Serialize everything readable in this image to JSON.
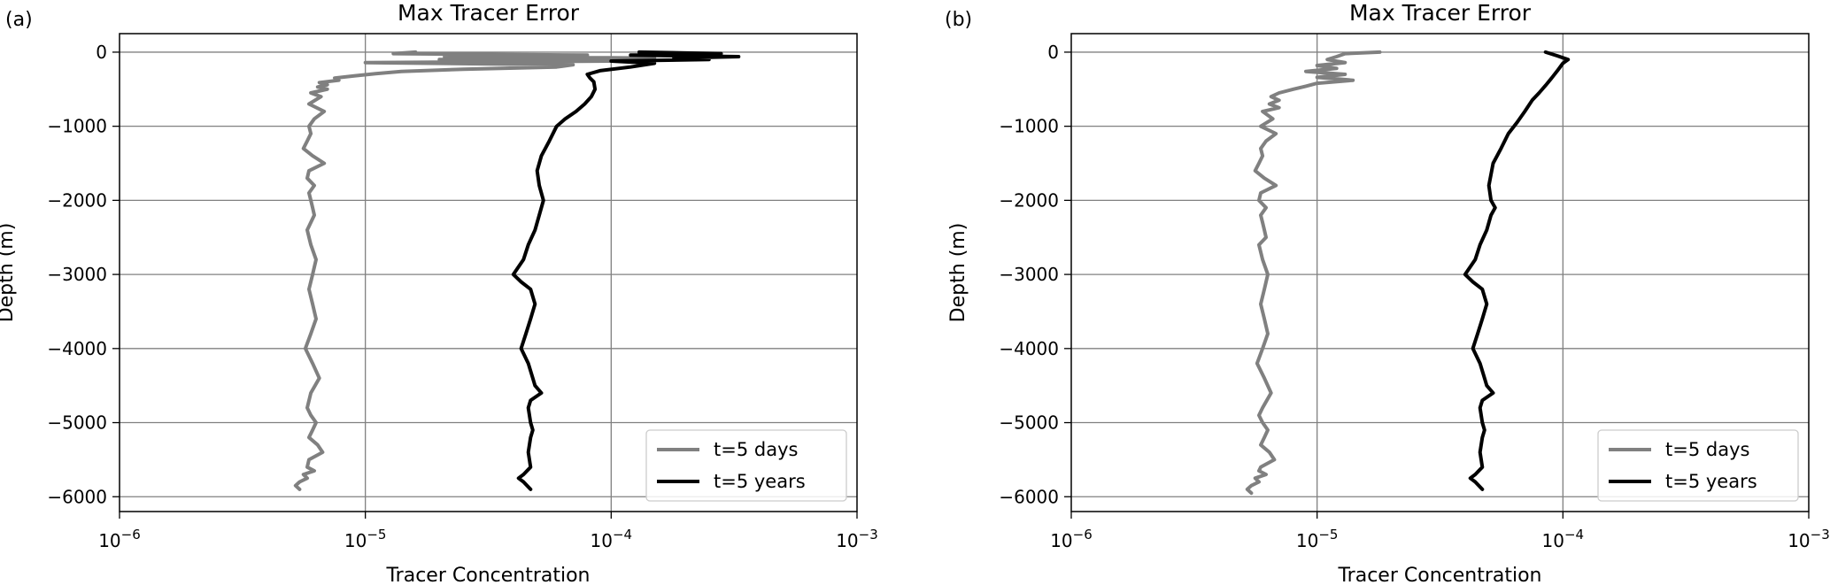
{
  "figure": {
    "panels": [
      {
        "letter": "(a)",
        "title": "Max Tracer Error",
        "xlabel": "Tracer Concentration",
        "ylabel": "Depth (m)"
      },
      {
        "letter": "(b)",
        "title": "Max Tracer Error",
        "xlabel": "Tracer Concentration",
        "ylabel": "Depth (m)"
      }
    ],
    "colors": {
      "series_days": "#808080",
      "series_years": "#000000",
      "grid": "#808080"
    }
  },
  "chart_data": [
    {
      "type": "line",
      "panel_label": "(a)",
      "title": "Max Tracer Error",
      "xlabel": "Tracer Concentration",
      "ylabel": "Depth (m)",
      "xscale": "log",
      "xlim": [
        1e-06,
        0.001
      ],
      "ylim": [
        -6200,
        250
      ],
      "xticks": [
        1e-06,
        1e-05,
        0.0001,
        0.001
      ],
      "xticklabels": [
        "10^-6",
        "10^-5",
        "10^-4",
        "10^-3"
      ],
      "yticks": [
        0,
        -1000,
        -2000,
        -3000,
        -4000,
        -5000,
        -6000
      ],
      "yticklabels": [
        "0",
        "−1000",
        "−2000",
        "−3000",
        "−4000",
        "−5000",
        "−6000"
      ],
      "grid": true,
      "legend_position": "lower right",
      "series": [
        {
          "name": "t=5 days",
          "color": "#808080",
          "x": [
            1.6e-05,
            1.3e-05,
            8e-05,
            2.1e-05,
            0.00015,
            2e-05,
            0.0001,
            1e-05,
            7e-05,
            6e-05,
            2.5e-05,
            1.4e-05,
            1.1e-05,
            9e-06,
            7.5e-06,
            7.8e-06,
            6.5e-06,
            7e-06,
            6.4e-06,
            7e-06,
            6e-06,
            6.6e-06,
            5.9e-06,
            6.8e-06,
            6.2e-06,
            5.9e-06,
            6e-06,
            5.8e-06,
            5.6e-06,
            6.1e-06,
            6.8e-06,
            5.9e-06,
            5.8e-06,
            6.2e-06,
            5.9e-06,
            6e-06,
            6.1e-06,
            6.2e-06,
            5.8e-06,
            6e-06,
            6.3e-06,
            6.1e-06,
            5.9e-06,
            6.1e-06,
            6.3e-06,
            6e-06,
            5.7e-06,
            6.1e-06,
            6.5e-06,
            6e-06,
            5.8e-06,
            6e-06,
            6.3e-06,
            6.1e-06,
            5.9e-06,
            6.4e-06,
            6.7e-06,
            5.9e-06,
            5.8e-06,
            6.2e-06,
            5.6e-06,
            5.8e-06,
            5.4e-06,
            5.2e-06,
            5.4e-06
          ],
          "y": [
            0,
            -20,
            -40,
            -60,
            -80,
            -100,
            -120,
            -140,
            -170,
            -200,
            -230,
            -260,
            -290,
            -320,
            -350,
            -380,
            -410,
            -440,
            -470,
            -500,
            -550,
            -600,
            -700,
            -800,
            -900,
            -1000,
            -1100,
            -1200,
            -1300,
            -1400,
            -1500,
            -1600,
            -1700,
            -1800,
            -1900,
            -2000,
            -2100,
            -2200,
            -2400,
            -2600,
            -2800,
            -3000,
            -3200,
            -3400,
            -3600,
            -3800,
            -4000,
            -4200,
            -4400,
            -4600,
            -4800,
            -4900,
            -5000,
            -5100,
            -5200,
            -5300,
            -5400,
            -5500,
            -5600,
            -5650,
            -5700,
            -5750,
            -5800,
            -5850,
            -5900
          ]
        },
        {
          "name": "t=5 years",
          "color": "#000000",
          "x": [
            0.00013,
            0.00028,
            0.00012,
            0.00033,
            0.00018,
            0.00025,
            0.0001,
            0.00015,
            0.00012,
            9e-05,
            8e-05,
            8.2e-05,
            8.5e-05,
            8.6e-05,
            8.3e-05,
            7.8e-05,
            7.2e-05,
            6.5e-05,
            6e-05,
            5.6e-05,
            5.2e-05,
            5e-05,
            5.1e-05,
            5.3e-05,
            5.1e-05,
            4.9e-05,
            4.6e-05,
            4.4e-05,
            4e-05,
            4.3e-05,
            4.7e-05,
            4.9e-05,
            4.7e-05,
            4.5e-05,
            4.3e-05,
            4.6e-05,
            4.8e-05,
            4.9e-05,
            5.2e-05,
            4.7e-05,
            4.6e-05,
            4.7e-05,
            4.8e-05,
            4.7e-05,
            4.6e-05,
            4.7e-05,
            4.4e-05,
            4.2e-05,
            4.4e-05,
            4.7e-05
          ],
          "y": [
            0,
            -20,
            -40,
            -60,
            -80,
            -100,
            -120,
            -150,
            -200,
            -250,
            -300,
            -350,
            -400,
            -500,
            -600,
            -700,
            -800,
            -900,
            -1000,
            -1200,
            -1400,
            -1600,
            -1800,
            -2000,
            -2200,
            -2400,
            -2600,
            -2800,
            -3000,
            -3100,
            -3200,
            -3400,
            -3600,
            -3800,
            -4000,
            -4200,
            -4400,
            -4500,
            -4600,
            -4700,
            -4800,
            -5000,
            -5100,
            -5200,
            -5400,
            -5600,
            -5700,
            -5750,
            -5800,
            -5900
          ]
        }
      ]
    },
    {
      "type": "line",
      "panel_label": "(b)",
      "title": "Max Tracer Error",
      "xlabel": "Tracer Concentration",
      "ylabel": "Depth (m)",
      "xscale": "log",
      "xlim": [
        1e-06,
        0.001
      ],
      "ylim": [
        -6200,
        250
      ],
      "xticks": [
        1e-06,
        1e-05,
        0.0001,
        0.001
      ],
      "xticklabels": [
        "10^-6",
        "10^-5",
        "10^-4",
        "10^-3"
      ],
      "yticks": [
        0,
        -1000,
        -2000,
        -3000,
        -4000,
        -5000,
        -6000
      ],
      "yticklabels": [
        "0",
        "−1000",
        "−2000",
        "−3000",
        "−4000",
        "−5000",
        "−6000"
      ],
      "grid": true,
      "legend_position": "lower right",
      "series": [
        {
          "name": "t=5 days",
          "color": "#808080",
          "x": [
            1.8e-05,
            1.3e-05,
            1.2e-05,
            1.1e-05,
            1.3e-05,
            1e-05,
            1.2e-05,
            9e-06,
            1.3e-05,
            1e-05,
            1.4e-05,
            1e-05,
            9e-06,
            8e-06,
            7e-06,
            6.5e-06,
            7e-06,
            6.4e-06,
            7e-06,
            6e-06,
            6.6e-06,
            5.9e-06,
            6.8e-06,
            6.2e-06,
            5.9e-06,
            6e-06,
            5.8e-06,
            5.6e-06,
            6.1e-06,
            6.8e-06,
            5.9e-06,
            5.8e-06,
            6.2e-06,
            5.9e-06,
            6e-06,
            6.1e-06,
            6.2e-06,
            5.8e-06,
            6e-06,
            6.3e-06,
            6.1e-06,
            5.9e-06,
            6.1e-06,
            6.3e-06,
            6e-06,
            5.7e-06,
            6.1e-06,
            6.5e-06,
            6e-06,
            5.8e-06,
            6e-06,
            6.3e-06,
            6.1e-06,
            5.9e-06,
            6.4e-06,
            6.7e-06,
            5.9e-06,
            5.8e-06,
            6.2e-06,
            5.6e-06,
            5.8e-06,
            5.4e-06,
            5.2e-06,
            5.4e-06
          ],
          "y": [
            0,
            -20,
            -60,
            -100,
            -140,
            -180,
            -220,
            -260,
            -300,
            -340,
            -380,
            -420,
            -460,
            -500,
            -550,
            -600,
            -650,
            -700,
            -750,
            -800,
            -900,
            -1000,
            -1100,
            -1200,
            -1300,
            -1400,
            -1500,
            -1600,
            -1700,
            -1800,
            -1900,
            -2000,
            -2100,
            -2200,
            -2300,
            -2400,
            -2500,
            -2600,
            -2800,
            -3000,
            -3200,
            -3400,
            -3600,
            -3800,
            -4000,
            -4200,
            -4400,
            -4600,
            -4800,
            -4900,
            -5000,
            -5100,
            -5200,
            -5300,
            -5400,
            -5500,
            -5600,
            -5650,
            -5700,
            -5750,
            -5800,
            -5850,
            -5900,
            -5950
          ]
        },
        {
          "name": "t=5 years",
          "color": "#000000",
          "x": [
            8.5e-05,
            9.5e-05,
            0.000105,
            0.0001,
            9.5e-05,
            9e-05,
            8.5e-05,
            8e-05,
            7.5e-05,
            7e-05,
            6.5e-05,
            6e-05,
            5.6e-05,
            5.2e-05,
            5e-05,
            5.1e-05,
            5.3e-05,
            5.1e-05,
            4.9e-05,
            4.6e-05,
            4.4e-05,
            4e-05,
            4.3e-05,
            4.7e-05,
            4.9e-05,
            4.7e-05,
            4.5e-05,
            4.3e-05,
            4.6e-05,
            4.8e-05,
            4.9e-05,
            5.2e-05,
            4.7e-05,
            4.6e-05,
            4.7e-05,
            4.8e-05,
            4.7e-05,
            4.6e-05,
            4.7e-05,
            4.4e-05,
            4.2e-05,
            4.4e-05,
            4.7e-05
          ],
          "y": [
            0,
            -50,
            -100,
            -150,
            -250,
            -350,
            -450,
            -550,
            -650,
            -800,
            -950,
            -1100,
            -1300,
            -1500,
            -1800,
            -2000,
            -2100,
            -2200,
            -2400,
            -2600,
            -2800,
            -3000,
            -3100,
            -3200,
            -3400,
            -3600,
            -3800,
            -4000,
            -4200,
            -4400,
            -4500,
            -4600,
            -4700,
            -4800,
            -5000,
            -5100,
            -5200,
            -5400,
            -5600,
            -5700,
            -5750,
            -5800,
            -5900
          ]
        }
      ]
    }
  ]
}
